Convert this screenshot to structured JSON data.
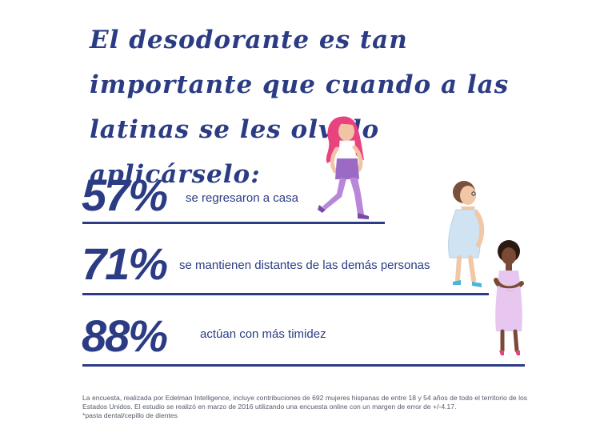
{
  "title": "El desodorante es tan importante que cuando a las latinas se les olvido aplicárselo:",
  "stats": [
    {
      "value": "57%",
      "description": "se regresaron a casa"
    },
    {
      "value": "71%",
      "description": "se mantienen distantes de las demás personas"
    },
    {
      "value": "88%",
      "description": "actúan con más timidez"
    }
  ],
  "footnote": {
    "line1": "La encuesta, realizada por Edelman Intelligence, incluye contribuciones de 692 mujeres hispanas de entre 18 y 54 años de todo el territorio de los Estados Unidos. El estudio se realizó en marzo de 2016 utilizando una encuesta online con un margen de error de +/-4.17.",
    "line2": "*pasta dental/cepillo de dientes"
  },
  "colors": {
    "accent": "#2b3c84",
    "pink_hair": "#e8427f",
    "purple": "#9b6ac4",
    "light_blue": "#cfe3f3",
    "lilac": "#e7c7ef"
  }
}
